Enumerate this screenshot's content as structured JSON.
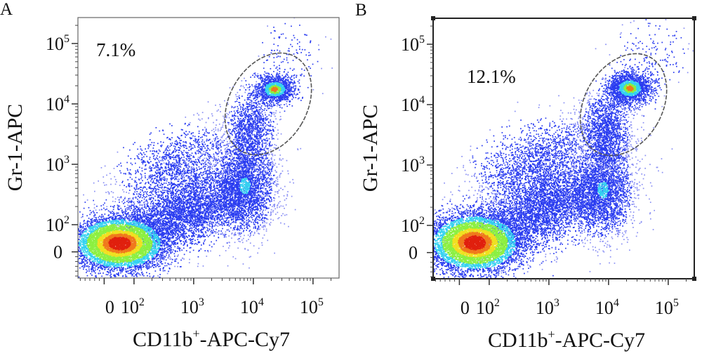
{
  "chart_data": [
    {
      "type": "scatter",
      "panel_label": "A",
      "gate_percent": "7.1%",
      "xlabel": {
        "main": "CD11b",
        "sup": "+",
        "rest": "-APC-Cy7"
      },
      "ylabel": "Gr-1-APC",
      "axis_scale": "biexponential (decades)",
      "xlim": [
        1.06,
        5.44
      ],
      "ylim": [
        1.12,
        5.43
      ],
      "xticks": [
        {
          "base": "0",
          "exp": "",
          "t": 1.5
        },
        {
          "base": "10",
          "exp": "2",
          "t": 2
        },
        {
          "base": "10",
          "exp": "3",
          "t": 3
        },
        {
          "base": "10",
          "exp": "4",
          "t": 4
        },
        {
          "base": "10",
          "exp": "5",
          "t": 5
        }
      ],
      "yticks": [
        {
          "base": "0",
          "exp": "",
          "t": 1.55
        },
        {
          "base": "10",
          "exp": "2",
          "t": 2
        },
        {
          "base": "10",
          "exp": "3",
          "t": 3
        },
        {
          "base": "10",
          "exp": "4",
          "t": 4
        },
        {
          "base": "10",
          "exp": "5",
          "t": 5
        }
      ],
      "gate": {
        "shape": "ellipse",
        "center": [
          4.25,
          4.0
        ],
        "radii": [
          0.65,
          0.9
        ],
        "rotation_deg": 30
      },
      "populations": [
        {
          "name": "CD11b- Gr-1- main",
          "center": [
            1.75,
            1.7
          ],
          "sd": [
            0.38,
            0.22
          ],
          "events": 7000,
          "dense": true
        },
        {
          "name": "bridge",
          "center": [
            2.9,
            2.25
          ],
          "sd": [
            0.6,
            0.35
          ],
          "events": 4200,
          "dense": false
        },
        {
          "name": "diagonal sparse",
          "center": [
            2.7,
            3.0
          ],
          "sd": [
            0.5,
            0.35
          ],
          "events": 1300,
          "dense": false
        },
        {
          "name": "CD11b+ Gr-1 int",
          "center": [
            3.85,
            2.65
          ],
          "sd": [
            0.25,
            0.4
          ],
          "events": 2600,
          "dense": false
        },
        {
          "name": "gated lower",
          "center": [
            3.95,
            3.6
          ],
          "sd": [
            0.2,
            0.3
          ],
          "events": 1100,
          "dense": false
        },
        {
          "name": "CD11b+ Gr-1 high",
          "center": [
            4.35,
            4.25
          ],
          "sd": [
            0.17,
            0.12
          ],
          "events": 1300,
          "dense": true
        },
        {
          "name": "top outliers",
          "center": [
            4.6,
            4.8
          ],
          "sd": [
            0.25,
            0.3
          ],
          "events": 120,
          "dense": false
        }
      ]
    },
    {
      "type": "scatter",
      "panel_label": "B",
      "gate_percent": "12.1%",
      "xlabel": {
        "main": "CD11b",
        "sup": "+",
        "rest": "-APC-Cy7"
      },
      "ylabel": "Gr-1-APC",
      "axis_scale": "biexponential (decades)",
      "xlim": [
        1.06,
        5.44
      ],
      "ylim": [
        1.12,
        5.43
      ],
      "xticks": [
        {
          "base": "0",
          "exp": "",
          "t": 1.5
        },
        {
          "base": "10",
          "exp": "2",
          "t": 2
        },
        {
          "base": "10",
          "exp": "3",
          "t": 3
        },
        {
          "base": "10",
          "exp": "4",
          "t": 4
        },
        {
          "base": "10",
          "exp": "5",
          "t": 5
        }
      ],
      "yticks": [
        {
          "base": "0",
          "exp": "",
          "t": 1.55
        },
        {
          "base": "10",
          "exp": "2",
          "t": 2
        },
        {
          "base": "10",
          "exp": "3",
          "t": 3
        },
        {
          "base": "10",
          "exp": "4",
          "t": 4
        },
        {
          "base": "10",
          "exp": "5",
          "t": 5
        }
      ],
      "gate": {
        "shape": "ellipse",
        "center": [
          4.25,
          4.0
        ],
        "radii": [
          0.65,
          0.9
        ],
        "rotation_deg": 30
      },
      "populations": [
        {
          "name": "CD11b- Gr-1- main",
          "center": [
            1.75,
            1.72
          ],
          "sd": [
            0.38,
            0.24
          ],
          "events": 7000,
          "dense": true
        },
        {
          "name": "bridge",
          "center": [
            2.9,
            2.3
          ],
          "sd": [
            0.6,
            0.38
          ],
          "events": 4400,
          "dense": false
        },
        {
          "name": "diagonal sparse",
          "center": [
            2.8,
            3.1
          ],
          "sd": [
            0.55,
            0.35
          ],
          "events": 1700,
          "dense": false
        },
        {
          "name": "CD11b+ Gr-1 int",
          "center": [
            3.9,
            2.6
          ],
          "sd": [
            0.25,
            0.4
          ],
          "events": 2400,
          "dense": false
        },
        {
          "name": "gated lower",
          "center": [
            3.95,
            3.6
          ],
          "sd": [
            0.2,
            0.3
          ],
          "events": 1400,
          "dense": false
        },
        {
          "name": "CD11b+ Gr-1 high",
          "center": [
            4.35,
            4.28
          ],
          "sd": [
            0.18,
            0.13
          ],
          "events": 1900,
          "dense": true
        },
        {
          "name": "top outliers",
          "center": [
            4.7,
            4.85
          ],
          "sd": [
            0.3,
            0.3
          ],
          "events": 160,
          "dense": false
        }
      ]
    }
  ],
  "colors": {
    "blue": "#2a3cf0",
    "light_blue": "#8a90f4",
    "cyan": "#34d2f0",
    "green": "#8cf040",
    "yellow": "#f0e020",
    "orange": "#f07a1c",
    "red": "#e0200e",
    "gate": "#555555"
  }
}
